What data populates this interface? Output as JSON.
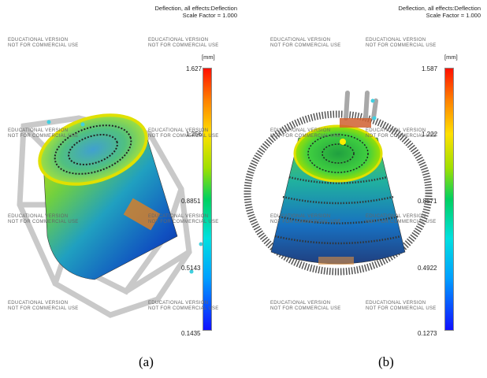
{
  "panel_a": {
    "header_line1": "Deflection, all effects:Deflection",
    "header_line2": "Scale Factor = 1.000",
    "unit": "[mm]",
    "legend_ticks": [
      "1.627",
      "1.256",
      "0.8851",
      "0.5143",
      "0.1435"
    ],
    "caption": "(a)"
  },
  "panel_b": {
    "header_line1": "Deflection, all effects:Deflection",
    "header_line2": "Scale Factor = 1.000",
    "unit": "[mm]",
    "legend_ticks": [
      "1.587",
      "1.222",
      "0.8571",
      "0.4922",
      "0.1273"
    ],
    "caption": "(b)"
  },
  "watermark_lines": [
    "EDUCATIONAL VERSION",
    "NOT FOR COMMERCIAL USE"
  ]
}
